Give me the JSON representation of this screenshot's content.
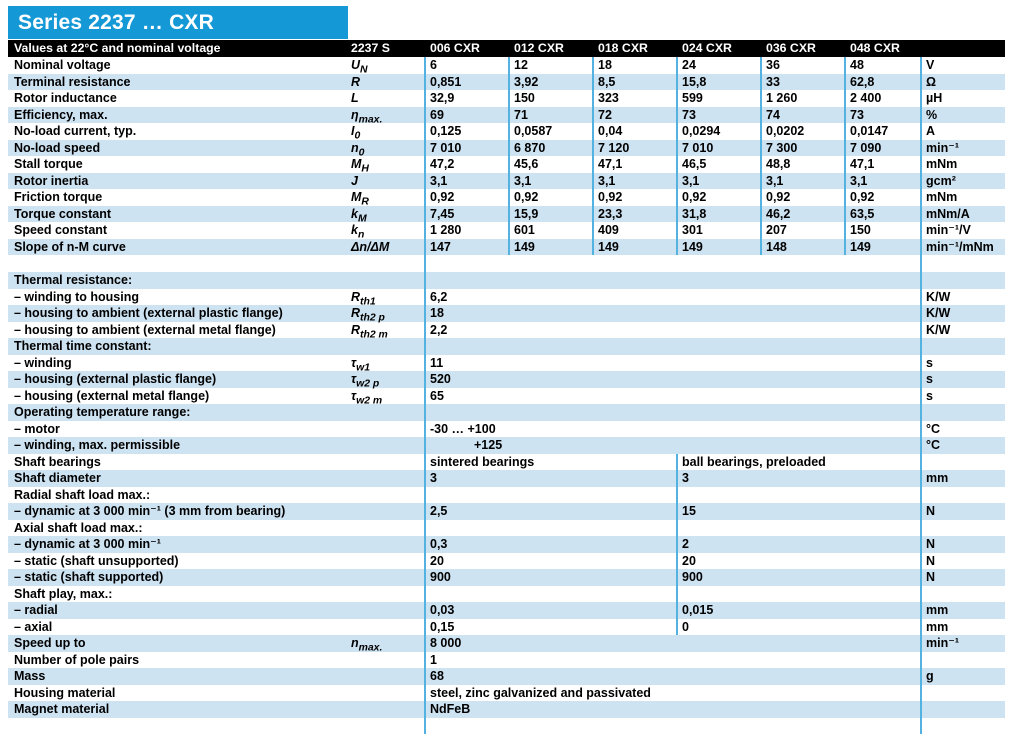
{
  "title": "Series 2237 … CXR",
  "colors": {
    "title_bar_blue": "#1598D6",
    "header_bar_black": "#000000",
    "row_shade_blue": "#CEE3F2",
    "grid_line_blue": "#54B2E1",
    "text": "#000000",
    "title_text": "#FFFFFF"
  },
  "header": {
    "label": "Values at 22°C and nominal voltage",
    "series_label": "2237 S",
    "columns": [
      "006 CXR",
      "012 CXR",
      "018 CXR",
      "024 CXR",
      "036 CXR",
      "048 CXR"
    ]
  },
  "rows": [
    {
      "label": "Nominal voltage",
      "symbol": {
        "base": "U",
        "sub": "N"
      },
      "type": "six",
      "values": [
        "6",
        "12",
        "18",
        "24",
        "36",
        "48"
      ],
      "unit": "V",
      "shade": false
    },
    {
      "label": "Terminal resistance",
      "symbol": {
        "base": "R",
        "sub": ""
      },
      "type": "six",
      "values": [
        "0,851",
        "3,92",
        "8,5",
        "15,8",
        "33",
        "62,8"
      ],
      "unit": "Ω",
      "shade": true
    },
    {
      "label": "Rotor inductance",
      "symbol": {
        "base": "L",
        "sub": ""
      },
      "type": "six",
      "values": [
        "32,9",
        "150",
        "323",
        "599",
        "1 260",
        "2 400"
      ],
      "unit": "µH",
      "shade": false
    },
    {
      "label": "Efficiency, max.",
      "symbol": {
        "base": "η",
        "sub": "max."
      },
      "type": "six",
      "values": [
        "69",
        "71",
        "72",
        "73",
        "74",
        "73"
      ],
      "unit": "%",
      "shade": true
    },
    {
      "label": "No-load current, typ.",
      "symbol": {
        "base": "I",
        "sub": "0"
      },
      "type": "six",
      "values": [
        "0,125",
        "0,0587",
        "0,04",
        "0,0294",
        "0,0202",
        "0,0147"
      ],
      "unit": "A",
      "shade": false
    },
    {
      "label": "No-load speed",
      "symbol": {
        "base": "n",
        "sub": "0"
      },
      "type": "six",
      "values": [
        "7 010",
        "6 870",
        "7 120",
        "7 010",
        "7 300",
        "7 090"
      ],
      "unit": "min⁻¹",
      "shade": true
    },
    {
      "label": "Stall torque",
      "symbol": {
        "base": "M",
        "sub": "H"
      },
      "type": "six",
      "values": [
        "47,2",
        "45,6",
        "47,1",
        "46,5",
        "48,8",
        "47,1"
      ],
      "unit": "mNm",
      "shade": false
    },
    {
      "label": "Rotor inertia",
      "symbol": {
        "base": "J",
        "sub": ""
      },
      "type": "six",
      "values": [
        "3,1",
        "3,1",
        "3,1",
        "3,1",
        "3,1",
        "3,1"
      ],
      "unit": "gcm²",
      "shade": true
    },
    {
      "label": "Friction torque",
      "symbol": {
        "base": "M",
        "sub": "R"
      },
      "type": "six",
      "values": [
        "0,92",
        "0,92",
        "0,92",
        "0,92",
        "0,92",
        "0,92"
      ],
      "unit": "mNm",
      "shade": false
    },
    {
      "label": "Torque constant",
      "symbol": {
        "base": "k",
        "sub": "M"
      },
      "type": "six",
      "values": [
        "7,45",
        "15,9",
        "23,3",
        "31,8",
        "46,2",
        "63,5"
      ],
      "unit": "mNm/A",
      "shade": true
    },
    {
      "label": "Speed constant",
      "symbol": {
        "base": "k",
        "sub": "n"
      },
      "type": "six",
      "values": [
        "1 280",
        "601",
        "409",
        "301",
        "207",
        "150"
      ],
      "unit": "min⁻¹/V",
      "shade": false
    },
    {
      "label": "Slope of n-M curve",
      "symbol": {
        "base": "Δn/ΔM",
        "sub": ""
      },
      "type": "six",
      "values": [
        "147",
        "149",
        "149",
        "149",
        "148",
        "149"
      ],
      "unit": "min⁻¹/mNm",
      "shade": true
    },
    {
      "type": "spacer",
      "shade": false
    },
    {
      "label": "Thermal resistance:",
      "type": "single",
      "value": "",
      "unit": "",
      "shade": true
    },
    {
      "label": "– winding to housing",
      "symbol": {
        "base": "R",
        "sub": "th1"
      },
      "type": "single",
      "value": "6,2",
      "unit": "K/W",
      "shade": false
    },
    {
      "label": "– housing to ambient (external plastic flange)",
      "symbol": {
        "base": "R",
        "sub": "th2 p"
      },
      "type": "single",
      "value": "18",
      "unit": "K/W",
      "shade": true
    },
    {
      "label": "– housing to ambient (external metal flange)",
      "symbol": {
        "base": "R",
        "sub": "th2 m"
      },
      "type": "single",
      "value": "2,2",
      "unit": "K/W",
      "shade": false
    },
    {
      "label": "Thermal time constant:",
      "type": "single",
      "value": "",
      "unit": "",
      "shade": true
    },
    {
      "label": "– winding",
      "symbol": {
        "base": "τ",
        "sub": "w1"
      },
      "type": "single",
      "value": "11",
      "unit": "s",
      "shade": false
    },
    {
      "label": "– housing (external plastic flange)",
      "symbol": {
        "base": "τ",
        "sub": "w2 p"
      },
      "type": "single",
      "value": "520",
      "unit": "s",
      "shade": true
    },
    {
      "label": "– housing (external metal flange)",
      "symbol": {
        "base": "τ",
        "sub": "w2 m"
      },
      "type": "single",
      "value": "65",
      "unit": "s",
      "shade": false
    },
    {
      "label": "Operating temperature range:",
      "type": "single",
      "value": "",
      "unit": "",
      "shade": true
    },
    {
      "label": "– motor",
      "type": "single",
      "value": "-30 … +100",
      "unit": "°C",
      "shade": false
    },
    {
      "label": "– winding, max. permissible",
      "type": "single",
      "value": "+125",
      "unit": "°C",
      "shade": true,
      "indent": true
    },
    {
      "label": "Shaft bearings",
      "type": "split",
      "value_a": "sintered bearings",
      "value_b": "ball bearings, preloaded",
      "unit": "",
      "shade": false
    },
    {
      "label": "Shaft diameter",
      "type": "split",
      "value_a": "3",
      "value_b": "3",
      "unit": "mm",
      "shade": true
    },
    {
      "label": "Radial shaft load max.:",
      "type": "split",
      "value_a": "",
      "value_b": "",
      "unit": "",
      "shade": false
    },
    {
      "label": "– dynamic at 3 000 min⁻¹ (3 mm from bearing)",
      "type": "split",
      "value_a": "2,5",
      "value_b": "15",
      "unit": "N",
      "shade": true
    },
    {
      "label": "Axial shaft load max.:",
      "type": "split",
      "value_a": "",
      "value_b": "",
      "unit": "",
      "shade": false
    },
    {
      "label": "– dynamic at 3 000 min⁻¹",
      "type": "split",
      "value_a": "0,3",
      "value_b": "2",
      "unit": "N",
      "shade": true
    },
    {
      "label": "– static (shaft unsupported)",
      "type": "split",
      "value_a": "20",
      "value_b": "20",
      "unit": "N",
      "shade": false
    },
    {
      "label": "– static (shaft supported)",
      "type": "split",
      "value_a": "900",
      "value_b": "900",
      "unit": "N",
      "shade": true
    },
    {
      "label": "Shaft play, max.:",
      "type": "split",
      "value_a": "",
      "value_b": "",
      "unit": "",
      "shade": false
    },
    {
      "label": "– radial",
      "type": "split",
      "value_a": "0,03",
      "value_b": "0,015",
      "unit": "mm",
      "shade": true
    },
    {
      "label": "– axial",
      "type": "split",
      "value_a": "0,15",
      "value_b": "0",
      "unit": "mm",
      "shade": false
    },
    {
      "label": "Speed up to",
      "symbol": {
        "base": "n",
        "sub": "max."
      },
      "type": "single",
      "value": "8 000",
      "unit": "min⁻¹",
      "shade": true
    },
    {
      "label": "Number of pole pairs",
      "type": "single",
      "value": "1",
      "unit": "",
      "shade": false
    },
    {
      "label": "Mass",
      "type": "single",
      "value": "68",
      "unit": "g",
      "shade": true
    },
    {
      "label": "Housing material",
      "type": "single",
      "value": "steel, zinc galvanized and passivated",
      "unit": "",
      "shade": false
    },
    {
      "label": "Magnet material",
      "type": "single",
      "value": "NdFeB",
      "unit": "",
      "shade": true
    },
    {
      "type": "filler",
      "shade": false
    }
  ]
}
